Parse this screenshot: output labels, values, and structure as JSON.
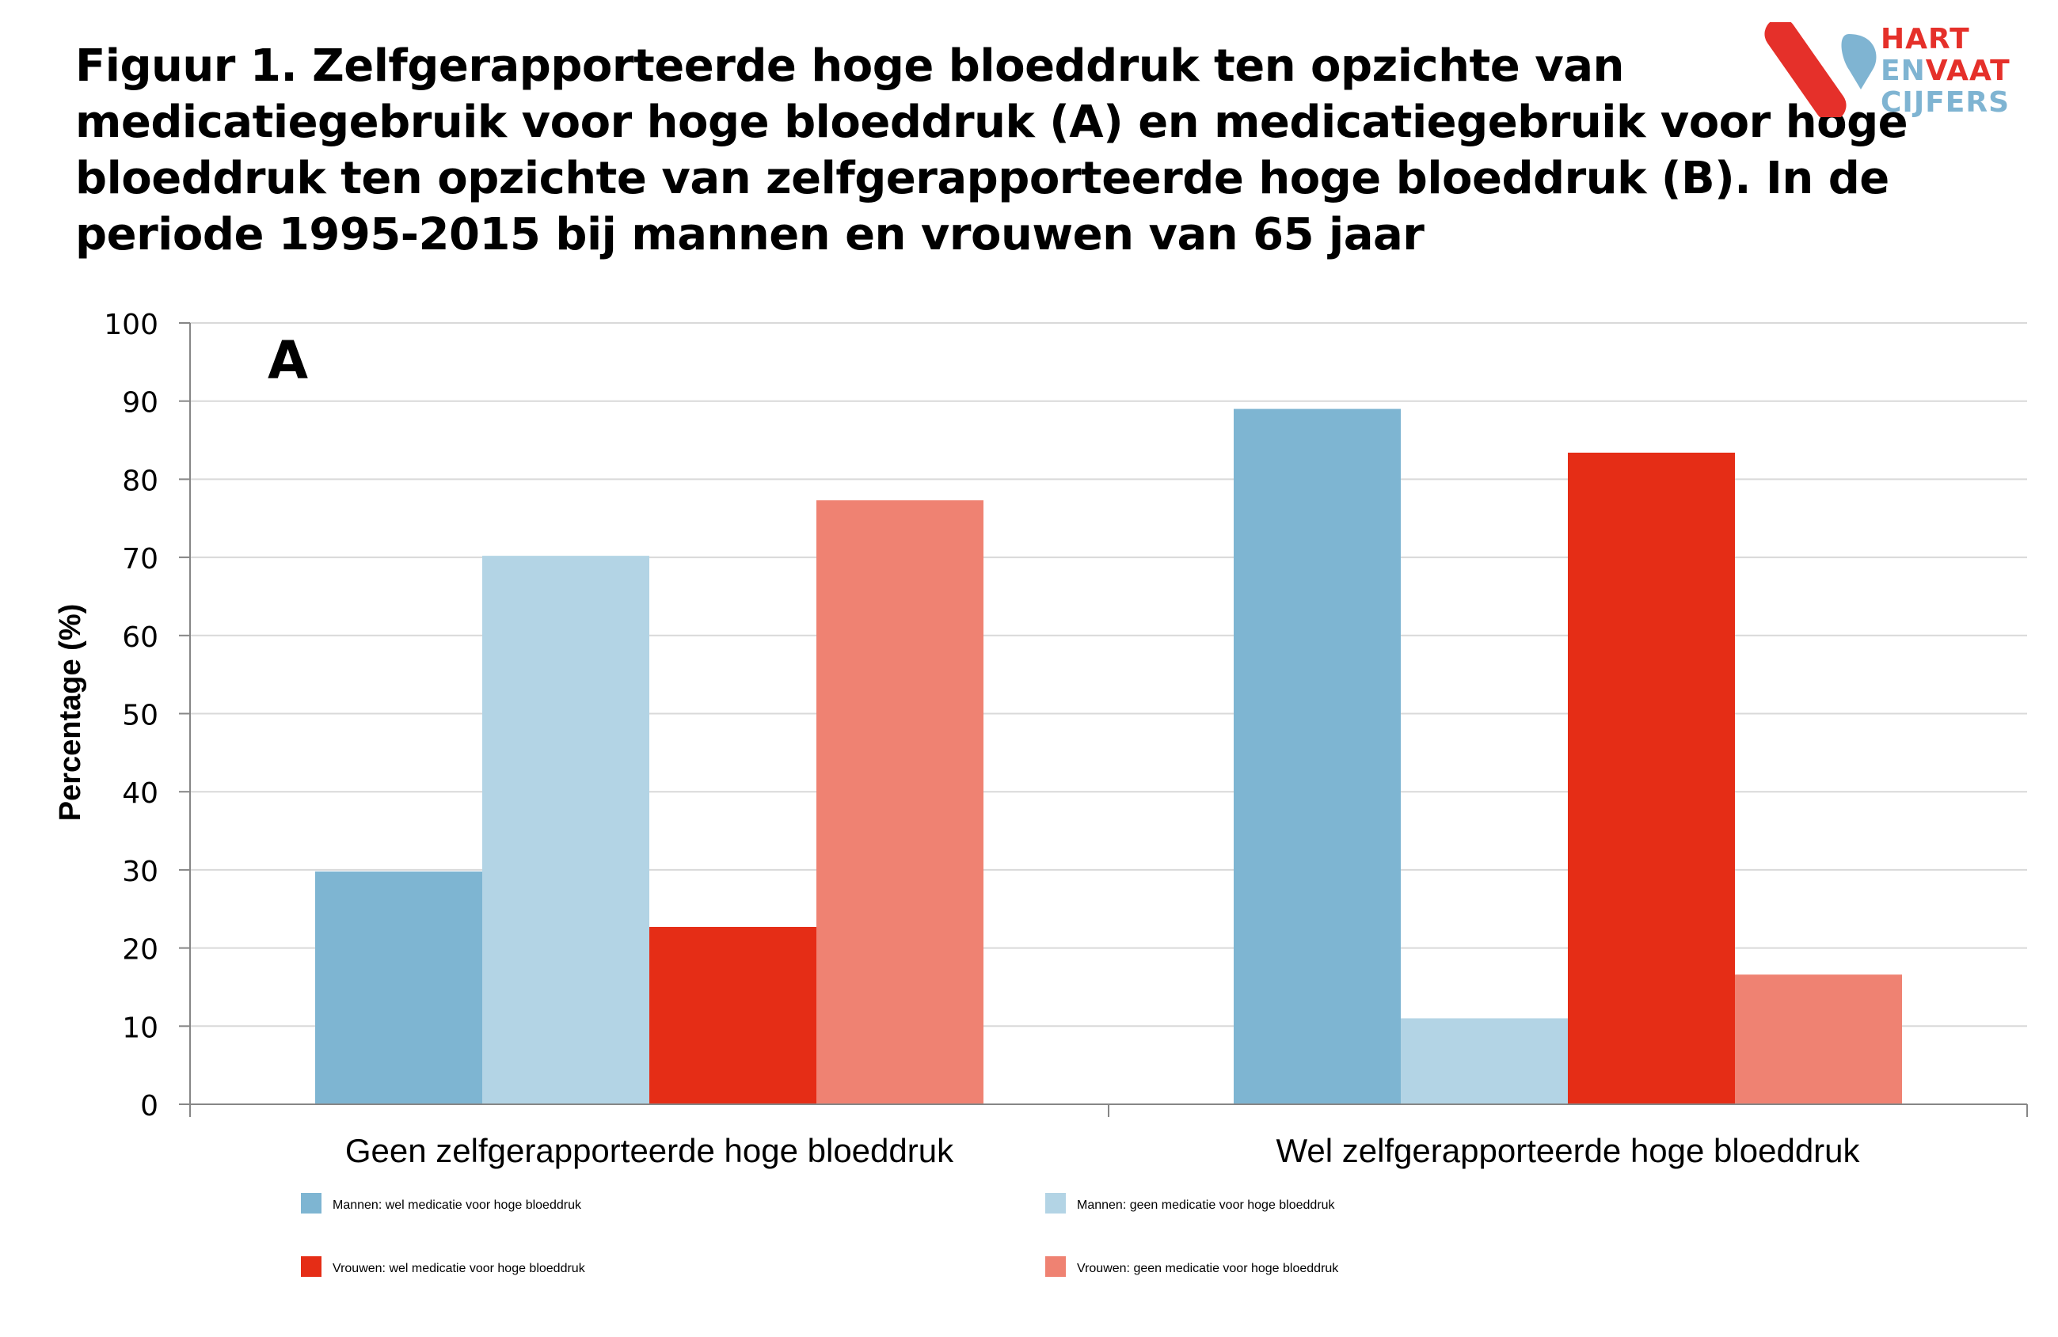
{
  "title_lines": [
    "Figuur 1. Zelfgerapporteerde hoge bloeddruk ten opzichte van",
    "medicatiegebruik voor hoge bloeddruk (A) en medicatiegebruik voor hoge",
    "bloeddruk ten opzichte van zelfgerapporteerde hoge bloeddruk (B). In de",
    "periode 1995-2015 bij mannen en vrouwen van 65 jaar"
  ],
  "logo": {
    "line1": "HART",
    "line2a": "EN",
    "line2b": "VAAT",
    "line3": "CIJFERS",
    "red": "#e5302a",
    "blue": "#7fb4d2"
  },
  "chart_data": {
    "type": "bar",
    "panel_label": "A",
    "categories": [
      "Geen zelfgerapporteerde hoge bloeddruk",
      "Wel zelfgerapporteerde hoge bloeddruk"
    ],
    "series": [
      {
        "name": "Mannen: wel medicatie voor hoge bloeddruk",
        "color": "#7eb5d2",
        "values": [
          29.8,
          89.0
        ]
      },
      {
        "name": "Mannen: geen medicatie voor hoge bloeddruk",
        "color": "#b3d4e5",
        "values": [
          70.2,
          11.0
        ]
      },
      {
        "name": "Vrouwen: wel medicatie voor hoge bloeddruk",
        "color": "#e52d16",
        "values": [
          22.7,
          83.4
        ]
      },
      {
        "name": "Vrouwen: geen medicatie voor hoge bloeddruk",
        "color": "#ef8272",
        "values": [
          77.3,
          16.6
        ]
      }
    ],
    "ylabel": "Percentage (%)",
    "xlabel": "",
    "ylim": [
      0,
      100
    ],
    "yticks": [
      0,
      10,
      20,
      30,
      40,
      50,
      60,
      70,
      80,
      90,
      100
    ],
    "grid": true,
    "legend_position": "bottom"
  }
}
